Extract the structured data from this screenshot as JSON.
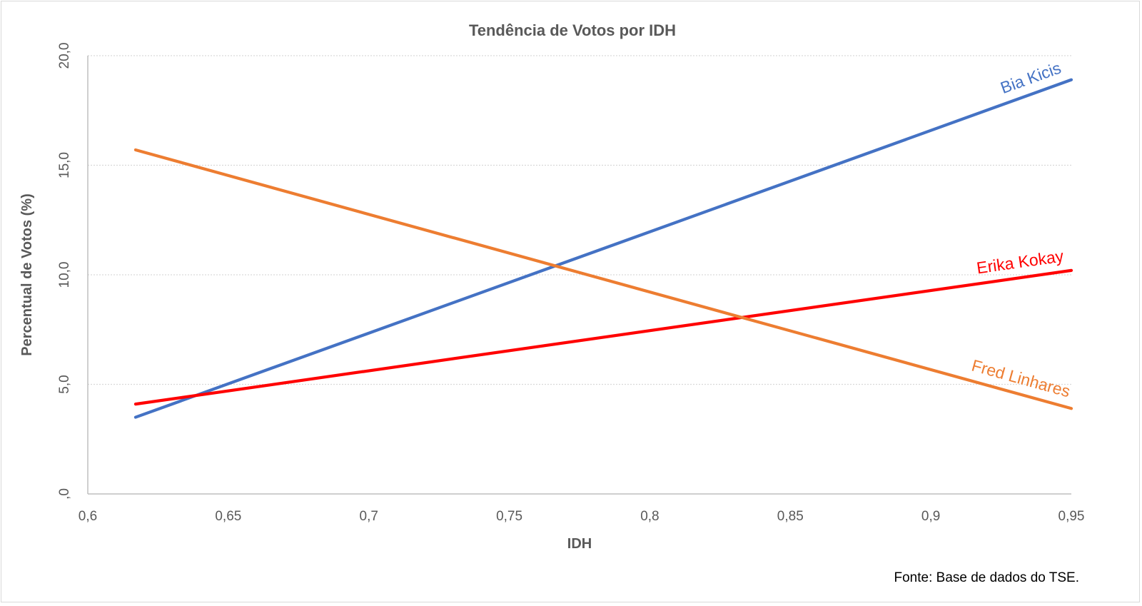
{
  "chart_data": {
    "type": "line",
    "title": "Tendência de Votos por IDH",
    "xlabel": "IDH",
    "ylabel": "Percentual de Votos (%)",
    "xlim": [
      0.6,
      0.95
    ],
    "ylim": [
      0,
      20
    ],
    "xticks": [
      "0,6",
      "0,65",
      "0,7",
      "0,75",
      "0,8",
      "0,85",
      "0,9",
      "0,95"
    ],
    "xtick_values": [
      0.6,
      0.65,
      0.7,
      0.75,
      0.8,
      0.85,
      0.9,
      0.95
    ],
    "yticks": [
      ",0",
      "5,0",
      "10,0",
      "15,0",
      "20,0"
    ],
    "ytick_values": [
      0,
      5,
      10,
      15,
      20
    ],
    "grid": "horizontal dotted",
    "legend": "inline labels",
    "series": [
      {
        "name": "Bia Kicis",
        "color": "#4472c4",
        "x": [
          0.617,
          0.95
        ],
        "y": [
          3.5,
          18.9
        ]
      },
      {
        "name": "Erika Kokay",
        "color": "#ff0000",
        "x": [
          0.617,
          0.95
        ],
        "y": [
          4.1,
          10.2
        ]
      },
      {
        "name": "Fred Linhares",
        "color": "#ed7d31",
        "x": [
          0.617,
          0.95
        ],
        "y": [
          15.7,
          3.9
        ]
      }
    ],
    "source_note": "Fonte: Base de dados do TSE."
  }
}
